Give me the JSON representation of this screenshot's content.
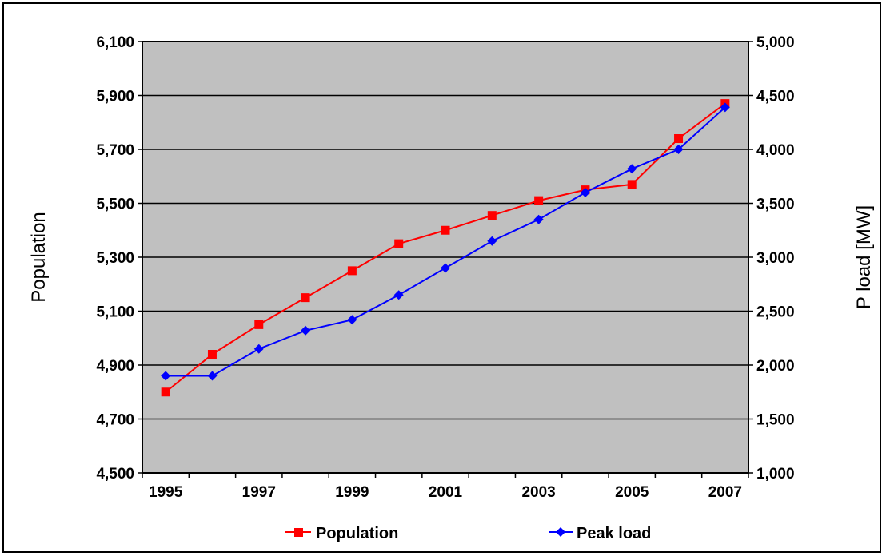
{
  "chart_data": {
    "type": "line",
    "x": [
      1995,
      1996,
      1997,
      1998,
      1999,
      2000,
      2001,
      2002,
      2003,
      2004,
      2005,
      2006,
      2007
    ],
    "xtick_labels": [
      "1995",
      "1997",
      "1999",
      "2001",
      "2003",
      "2005",
      "2007"
    ],
    "ylabel_left": "Population",
    "ylabel_right": "P  load [MW]",
    "ylim_left": [
      4500,
      6100
    ],
    "ylim_right": [
      1000,
      5000
    ],
    "yticks_left": [
      "6,100",
      "5,900",
      "5,700",
      "5,500",
      "5,300",
      "5,100",
      "4,900",
      "4,700",
      "4,500"
    ],
    "yticks_right": [
      "5,000",
      "4,500",
      "4,000",
      "3,500",
      "3,000",
      "2,500",
      "2,000",
      "1,500",
      "1,000"
    ],
    "grid": true,
    "legend_position": "bottom",
    "series": [
      {
        "name": "Population",
        "axis": "left",
        "color": "#ff0000",
        "marker": "square",
        "values": [
          4800,
          4940,
          5050,
          5150,
          5250,
          5350,
          5400,
          5455,
          5510,
          5550,
          5570,
          5740,
          5870
        ]
      },
      {
        "name": "Peak load",
        "axis": "right",
        "color": "#0000ff",
        "marker": "diamond",
        "values": [
          1900,
          1900,
          2150,
          2320,
          2420,
          2650,
          2900,
          3150,
          3350,
          3600,
          3820,
          4000,
          4390
        ]
      }
    ]
  }
}
